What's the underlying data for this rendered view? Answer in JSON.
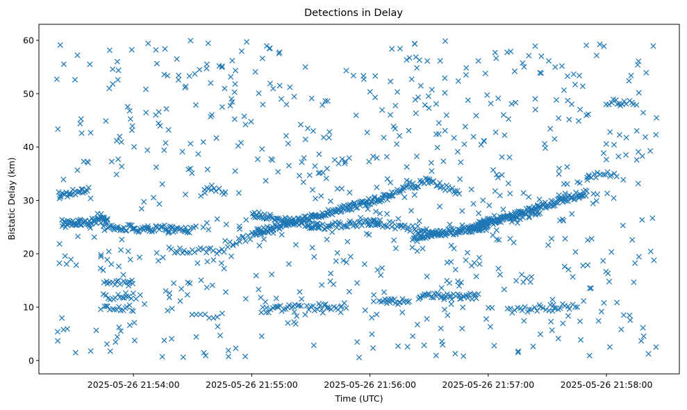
{
  "chart_data": {
    "type": "scatter",
    "title": "Detections in Delay",
    "xlabel": "Time (UTC)",
    "ylabel": "Bistatic Delay (km)",
    "marker": "x",
    "color": "#1f77b4",
    "grid": false,
    "xlim": [
      "2025-05-26 21:53:12",
      "2025-05-26 21:58:37"
    ],
    "ylim": [
      -2.5,
      63
    ],
    "xticks": [
      "2025-05-26 21:54:00",
      "2025-05-26 21:55:00",
      "2025-05-26 21:56:00",
      "2025-05-26 21:57:00",
      "2025-05-26 21:58:00"
    ],
    "yticks": [
      0,
      10,
      20,
      30,
      40,
      50,
      60
    ],
    "tracks": [
      {
        "t_start": "2025-05-26 21:53:24",
        "t_end": "2025-05-26 21:53:47",
        "y_start": 25.5,
        "y_end": 26.5,
        "count": 60
      },
      {
        "t_start": "2025-05-26 21:53:22",
        "t_end": "2025-05-26 21:53:37",
        "y_start": 31.0,
        "y_end": 32.0,
        "count": 25
      },
      {
        "t_start": "2025-05-26 21:53:45",
        "t_end": "2025-05-26 21:54:30",
        "y_start": 25.0,
        "y_end": 24.5,
        "count": 70
      },
      {
        "t_start": "2025-05-26 21:54:18",
        "t_end": "2025-05-26 21:54:46",
        "y_start": 20.8,
        "y_end": 20.5,
        "count": 22
      },
      {
        "t_start": "2025-05-26 21:54:36",
        "t_end": "2025-05-26 21:54:47",
        "y_start": 32.0,
        "y_end": 31.5,
        "count": 10
      },
      {
        "t_start": "2025-05-26 21:54:48",
        "t_end": "2025-05-26 21:55:05",
        "y_start": 21.8,
        "y_end": 24.0,
        "count": 18
      },
      {
        "t_start": "2025-05-26 21:55:02",
        "t_end": "2025-05-26 21:56:10",
        "y_start": 24.0,
        "y_end": 30.8,
        "count": 160
      },
      {
        "t_start": "2025-05-26 21:55:00",
        "t_end": "2025-05-26 21:55:35",
        "y_start": 27.5,
        "y_end": 25.0,
        "count": 60
      },
      {
        "t_start": "2025-05-26 21:55:30",
        "t_end": "2025-05-26 21:56:05",
        "y_start": 25.0,
        "y_end": 26.0,
        "count": 50
      },
      {
        "t_start": "2025-05-26 21:56:10",
        "t_end": "2025-05-26 21:56:30",
        "y_start": 31.0,
        "y_end": 34.0,
        "count": 30
      },
      {
        "t_start": "2025-05-26 21:56:30",
        "t_end": "2025-05-26 21:56:45",
        "y_start": 33.5,
        "y_end": 31.5,
        "count": 18
      },
      {
        "t_start": "2025-05-26 21:56:00",
        "t_end": "2025-05-26 21:56:35",
        "y_start": 26.0,
        "y_end": 24.0,
        "count": 40
      },
      {
        "t_start": "2025-05-26 21:56:22",
        "t_end": "2025-05-26 21:57:00",
        "y_start": 23.2,
        "y_end": 25.0,
        "count": 90
      },
      {
        "t_start": "2025-05-26 21:56:50",
        "t_end": "2025-05-26 21:57:50",
        "y_start": 24.5,
        "y_end": 31.5,
        "count": 140
      },
      {
        "t_start": "2025-05-26 21:56:55",
        "t_end": "2025-05-26 21:57:25",
        "y_start": 26.0,
        "y_end": 27.5,
        "count": 40
      },
      {
        "t_start": "2025-05-26 21:57:50",
        "t_end": "2025-05-26 21:58:05",
        "y_start": 34.5,
        "y_end": 35.0,
        "count": 14
      },
      {
        "t_start": "2025-05-26 21:58:00",
        "t_end": "2025-05-26 21:58:15",
        "y_start": 48.5,
        "y_end": 48.0,
        "count": 14
      },
      {
        "t_start": "2025-05-26 21:53:45",
        "t_end": "2025-05-26 21:54:00",
        "y_start": 14.5,
        "y_end": 14.5,
        "count": 15
      },
      {
        "t_start": "2025-05-26 21:53:45",
        "t_end": "2025-05-26 21:54:00",
        "y_start": 12.0,
        "y_end": 12.0,
        "count": 14
      },
      {
        "t_start": "2025-05-26 21:53:45",
        "t_end": "2025-05-26 21:54:00",
        "y_start": 9.8,
        "y_end": 9.8,
        "count": 15
      },
      {
        "t_start": "2025-05-26 21:54:30",
        "t_end": "2025-05-26 21:54:45",
        "y_start": 8.5,
        "y_end": 8.5,
        "count": 8
      },
      {
        "t_start": "2025-05-26 21:55:05",
        "t_end": "2025-05-26 21:55:25",
        "y_start": 9.5,
        "y_end": 10.0,
        "count": 22
      },
      {
        "t_start": "2025-05-26 21:55:28",
        "t_end": "2025-05-26 21:55:48",
        "y_start": 9.8,
        "y_end": 10.2,
        "count": 20
      },
      {
        "t_start": "2025-05-26 21:56:05",
        "t_end": "2025-05-26 21:56:20",
        "y_start": 11.0,
        "y_end": 11.0,
        "count": 18
      },
      {
        "t_start": "2025-05-26 21:56:25",
        "t_end": "2025-05-26 21:56:55",
        "y_start": 12.0,
        "y_end": 12.0,
        "count": 40
      },
      {
        "t_start": "2025-05-26 21:57:10",
        "t_end": "2025-05-26 21:57:45",
        "y_start": 9.5,
        "y_end": 10.2,
        "count": 30
      }
    ],
    "noise": {
      "t_range": [
        "2025-05-26 21:53:21",
        "2025-05-26 21:58:26"
      ],
      "y_range": [
        0.5,
        60
      ],
      "count": 700
    }
  }
}
